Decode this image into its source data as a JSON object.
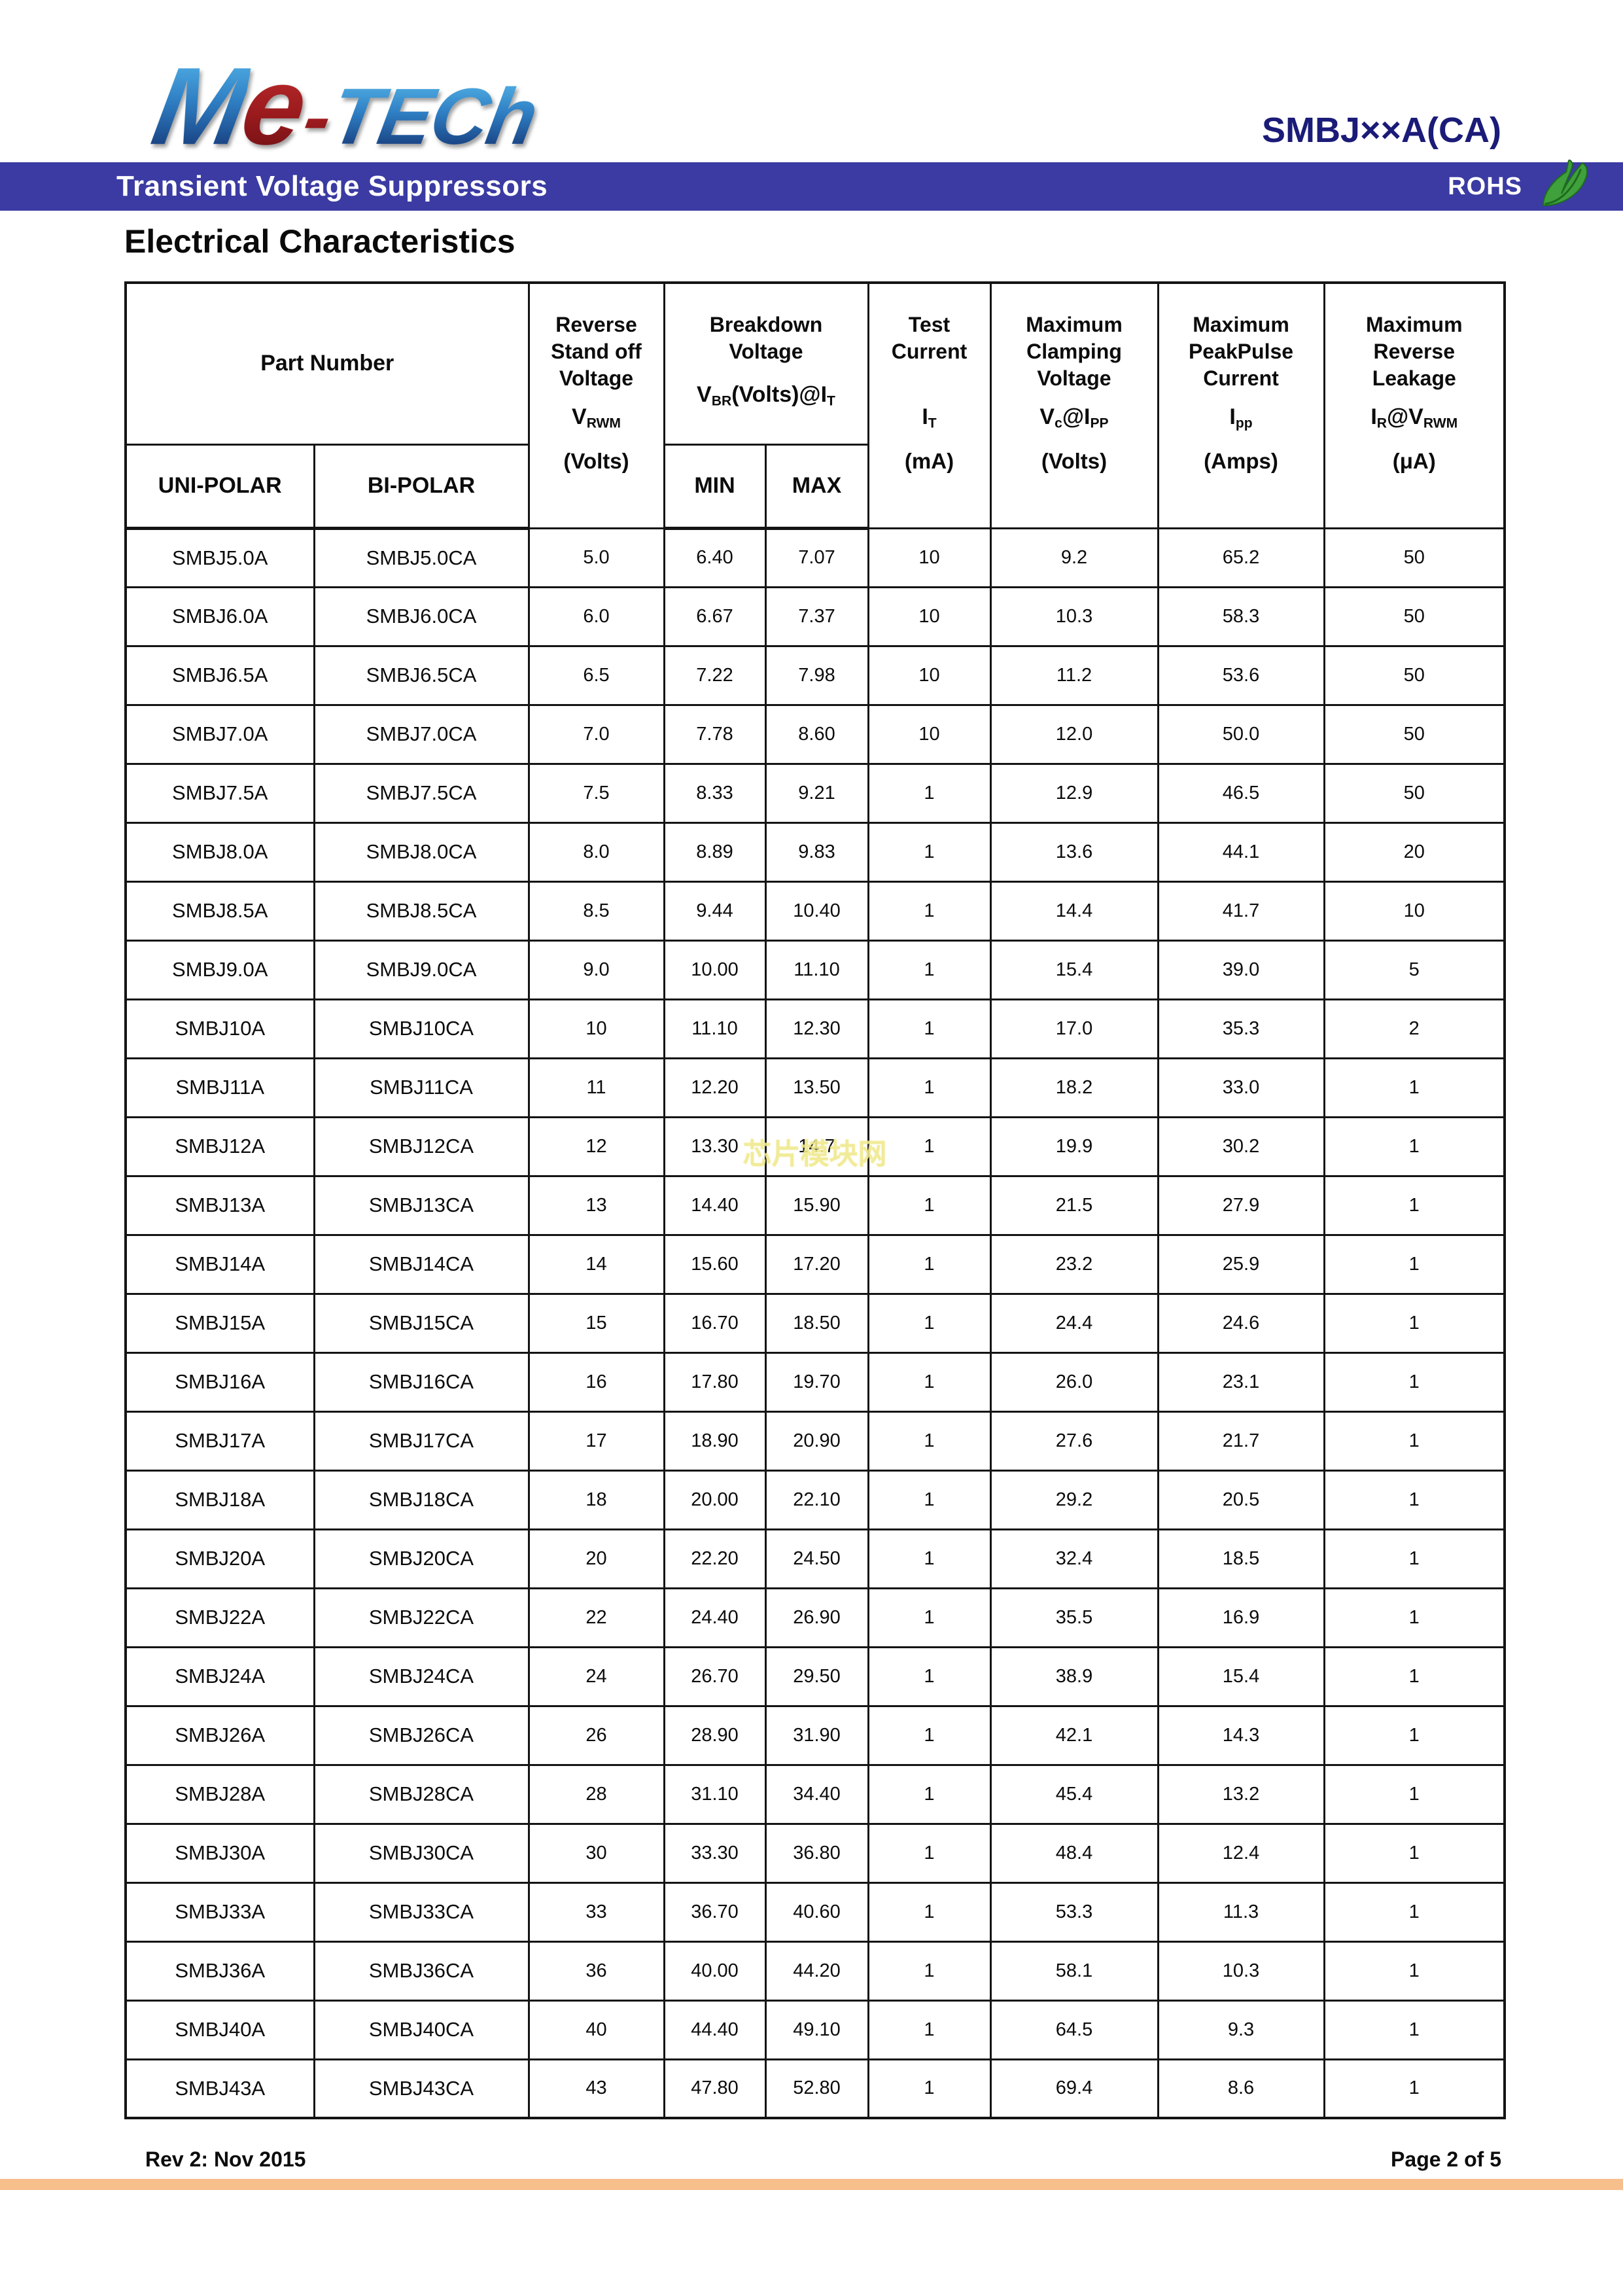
{
  "header": {
    "logo": {
      "m": "M",
      "e": "e",
      "dash": "-",
      "tech": "TECh"
    },
    "part_code": "SMBJ××A(CA)",
    "banner": {
      "title": "Transient Voltage Suppressors",
      "rohs": "ROHS"
    },
    "section_title": "Electrical Characteristics"
  },
  "table": {
    "column_keys": [
      "uni-polar",
      "bi-polar",
      "vrwm",
      "breakdown-min",
      "breakdown-max",
      "test-current",
      "clamping-voltage",
      "peak-pulse-current",
      "reverse-leakage"
    ],
    "header": {
      "part_number": "Part Number",
      "uni_polar": "UNI-POLAR",
      "bi_polar": "BI-POLAR",
      "min": "MIN",
      "max": "MAX",
      "reverse_standoff": {
        "title": "Reverse\nStand off\nVoltage",
        "sym_main": "V",
        "sym_sub": "RWM",
        "unit": "(Volts)"
      },
      "breakdown": {
        "title": "Breakdown\nVoltage",
        "sym_main": "V",
        "sym_sub": "BR",
        "sym_mid": "(Volts)@I",
        "sym_sub2": "T"
      },
      "test_current": {
        "title": "Test\nCurrent",
        "sym_main": "I",
        "sym_sub": "T",
        "unit": "(mA)"
      },
      "clamping": {
        "title": "Maximum\nClamping\nVoltage",
        "sym_main": "V",
        "sym_sub": "c",
        "sym_mid": "@I",
        "sym_sub2": "PP",
        "unit": "(Volts)"
      },
      "peak_pulse": {
        "title": "Maximum\nPeakPulse\nCurrent",
        "sym_main": "I",
        "sym_sub": "pp",
        "unit": "(Amps)"
      },
      "reverse_leakage": {
        "title": "Maximum\nReverse\nLeakage",
        "sym_main": "I",
        "sym_sub": "R",
        "sym_mid": "@V",
        "sym_sub2": "RWM",
        "unit": "(μA)"
      }
    },
    "rows": [
      [
        "SMBJ5.0A",
        "SMBJ5.0CA",
        "5.0",
        "6.40",
        "7.07",
        "10",
        "9.2",
        "65.2",
        "50"
      ],
      [
        "SMBJ6.0A",
        "SMBJ6.0CA",
        "6.0",
        "6.67",
        "7.37",
        "10",
        "10.3",
        "58.3",
        "50"
      ],
      [
        "SMBJ6.5A",
        "SMBJ6.5CA",
        "6.5",
        "7.22",
        "7.98",
        "10",
        "11.2",
        "53.6",
        "50"
      ],
      [
        "SMBJ7.0A",
        "SMBJ7.0CA",
        "7.0",
        "7.78",
        "8.60",
        "10",
        "12.0",
        "50.0",
        "50"
      ],
      [
        "SMBJ7.5A",
        "SMBJ7.5CA",
        "7.5",
        "8.33",
        "9.21",
        "1",
        "12.9",
        "46.5",
        "50"
      ],
      [
        "SMBJ8.0A",
        "SMBJ8.0CA",
        "8.0",
        "8.89",
        "9.83",
        "1",
        "13.6",
        "44.1",
        "20"
      ],
      [
        "SMBJ8.5A",
        "SMBJ8.5CA",
        "8.5",
        "9.44",
        "10.40",
        "1",
        "14.4",
        "41.7",
        "10"
      ],
      [
        "SMBJ9.0A",
        "SMBJ9.0CA",
        "9.0",
        "10.00",
        "11.10",
        "1",
        "15.4",
        "39.0",
        "5"
      ],
      [
        "SMBJ10A",
        "SMBJ10CA",
        "10",
        "11.10",
        "12.30",
        "1",
        "17.0",
        "35.3",
        "2"
      ],
      [
        "SMBJ11A",
        "SMBJ11CA",
        "11",
        "12.20",
        "13.50",
        "1",
        "18.2",
        "33.0",
        "1"
      ],
      [
        "SMBJ12A",
        "SMBJ12CA",
        "12",
        "13.30",
        "14.7",
        "1",
        "19.9",
        "30.2",
        "1"
      ],
      [
        "SMBJ13A",
        "SMBJ13CA",
        "13",
        "14.40",
        "15.90",
        "1",
        "21.5",
        "27.9",
        "1"
      ],
      [
        "SMBJ14A",
        "SMBJ14CA",
        "14",
        "15.60",
        "17.20",
        "1",
        "23.2",
        "25.9",
        "1"
      ],
      [
        "SMBJ15A",
        "SMBJ15CA",
        "15",
        "16.70",
        "18.50",
        "1",
        "24.4",
        "24.6",
        "1"
      ],
      [
        "SMBJ16A",
        "SMBJ16CA",
        "16",
        "17.80",
        "19.70",
        "1",
        "26.0",
        "23.1",
        "1"
      ],
      [
        "SMBJ17A",
        "SMBJ17CA",
        "17",
        "18.90",
        "20.90",
        "1",
        "27.6",
        "21.7",
        "1"
      ],
      [
        "SMBJ18A",
        "SMBJ18CA",
        "18",
        "20.00",
        "22.10",
        "1",
        "29.2",
        "20.5",
        "1"
      ],
      [
        "SMBJ20A",
        "SMBJ20CA",
        "20",
        "22.20",
        "24.50",
        "1",
        "32.4",
        "18.5",
        "1"
      ],
      [
        "SMBJ22A",
        "SMBJ22CA",
        "22",
        "24.40",
        "26.90",
        "1",
        "35.5",
        "16.9",
        "1"
      ],
      [
        "SMBJ24A",
        "SMBJ24CA",
        "24",
        "26.70",
        "29.50",
        "1",
        "38.9",
        "15.4",
        "1"
      ],
      [
        "SMBJ26A",
        "SMBJ26CA",
        "26",
        "28.90",
        "31.90",
        "1",
        "42.1",
        "14.3",
        "1"
      ],
      [
        "SMBJ28A",
        "SMBJ28CA",
        "28",
        "31.10",
        "34.40",
        "1",
        "45.4",
        "13.2",
        "1"
      ],
      [
        "SMBJ30A",
        "SMBJ30CA",
        "30",
        "33.30",
        "36.80",
        "1",
        "48.4",
        "12.4",
        "1"
      ],
      [
        "SMBJ33A",
        "SMBJ33CA",
        "33",
        "36.70",
        "40.60",
        "1",
        "53.3",
        "11.3",
        "1"
      ],
      [
        "SMBJ36A",
        "SMBJ36CA",
        "36",
        "40.00",
        "44.20",
        "1",
        "58.1",
        "10.3",
        "1"
      ],
      [
        "SMBJ40A",
        "SMBJ40CA",
        "40",
        "44.40",
        "49.10",
        "1",
        "64.5",
        "9.3",
        "1"
      ],
      [
        "SMBJ43A",
        "SMBJ43CA",
        "43",
        "47.80",
        "52.80",
        "1",
        "69.4",
        "8.6",
        "1"
      ]
    ]
  },
  "watermark": {
    "text": "芯片模块网",
    "part": "SMBJ12A",
    "column": 4
  },
  "footer": {
    "left": "Rev 2: Nov 2015",
    "right": "Page 2 of 5"
  },
  "colors": {
    "banner_bg": "#3B3BA3",
    "part_code": "#1B1B78",
    "orange_bar": "#F7BF8C",
    "leaf_green": "#3FA03C",
    "leaf_dark": "#1E6B1E",
    "watermark": "#F0E98F",
    "logo_blue_top": "#55B6E8",
    "logo_blue_bottom": "#12306F",
    "logo_red_top": "#C4302F",
    "logo_red_bottom": "#6E1013"
  }
}
